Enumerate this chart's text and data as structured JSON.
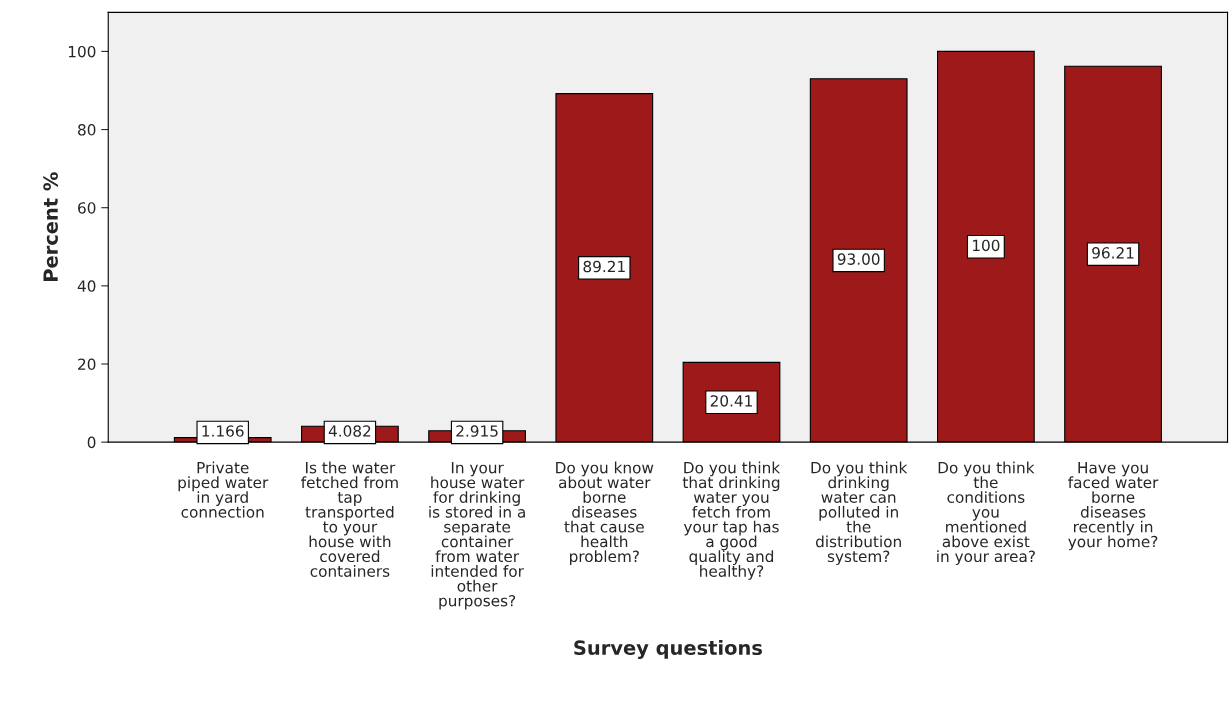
{
  "chart_data": {
    "type": "bar",
    "xlabel": "Survey questions",
    "ylabel": "Percent %",
    "categories": [
      "Private\npiped water\nin yard\nconnection",
      "Is the water\nfetched from\ntap\ntransported\nto your\nhouse with\ncovered\ncontainers",
      "In your\nhouse water\nfor drinking\nis stored in a\nseparate\ncontainer\nfrom water\nintended for\nother\npurposes?",
      "Do you know\nabout water\nborne\ndiseases\nthat cause\nhealth\nproblem?",
      "Do you think\nthat drinking\nwater you\nfetch from\nyour tap has\na good\nquality and\nhealthy?",
      "Do you think\ndrinking\nwater can\npolluted in\nthe\ndistribution\nsystem?",
      "Do you think\nthe\nconditions\nyou\nmentioned\nabove exist\nin your area?",
      "Have you\nfaced water\nborne\ndiseases\nrecently in\nyour home?"
    ],
    "values": [
      1.166,
      4.082,
      2.915,
      89.21,
      20.41,
      93.0,
      100,
      96.21
    ],
    "value_labels": [
      "1.166",
      "4.082",
      "2.915",
      "89.21",
      "20.41",
      "93.00",
      "100",
      "96.21"
    ],
    "color": "#9e1a1a",
    "ylim": [
      0,
      110
    ],
    "yticks": [
      0,
      20,
      40,
      60,
      80,
      100
    ],
    "grid": false
  }
}
